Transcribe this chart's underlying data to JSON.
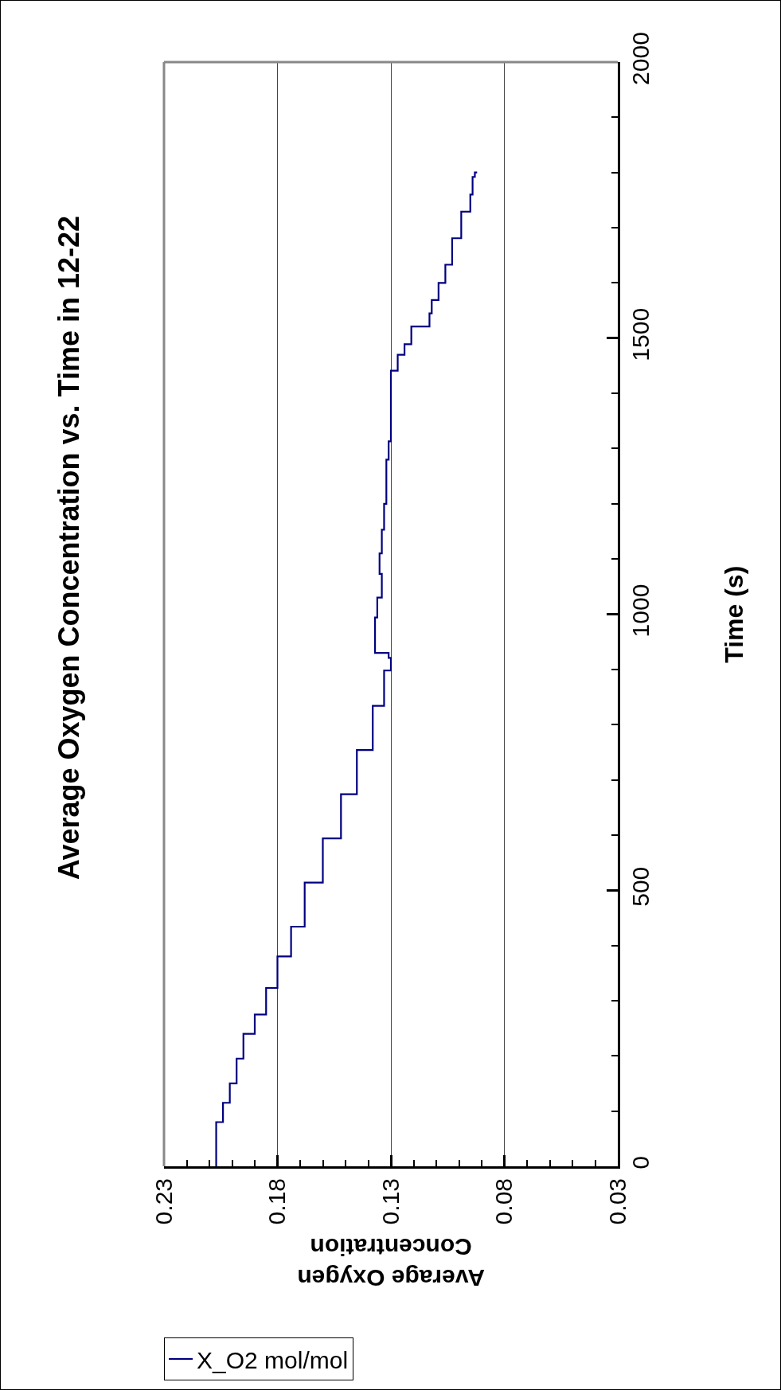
{
  "chart_data": {
    "type": "step",
    "title": "Average Oxygen Concentration vs. Time in 12-22",
    "xlabel": "Average Oxygen Concentration",
    "ylabel": "Time (s)",
    "series": [
      {
        "name": "X_O2 mol/mol",
        "color": "#000080",
        "x": [
          0.207,
          0.207,
          0.204,
          0.201,
          0.198,
          0.195,
          0.19,
          0.185,
          0.18,
          0.174,
          0.168,
          0.16,
          0.152,
          0.145,
          0.138,
          0.133,
          0.13,
          0.131,
          0.137,
          0.137,
          0.136,
          0.134,
          0.135,
          0.134,
          0.133,
          0.132,
          0.132,
          0.131,
          0.13,
          0.13,
          0.127,
          0.124,
          0.121,
          0.113,
          0.112,
          0.109,
          0.106,
          0.103,
          0.099,
          0.095,
          0.094,
          0.093,
          0.092
        ],
        "values": [
          0,
          60,
          80,
          115,
          150,
          195,
          240,
          275,
          323,
          380,
          434,
          514,
          594,
          674,
          754,
          834,
          898,
          921,
          930,
          960,
          994,
          1030,
          1073,
          1110,
          1153,
          1200,
          1233,
          1280,
          1313,
          1377,
          1441,
          1470,
          1489,
          1521,
          1545,
          1569,
          1600,
          1633,
          1681,
          1729,
          1760,
          1792,
          1800
        ]
      }
    ],
    "ylim": [
      0,
      2000
    ],
    "xlim": [
      0.23,
      0.03
    ],
    "yticks": [
      0,
      {
        "value": 100,
        "label": null
      },
      {
        "value": 200,
        "label": null
      },
      {
        "value": 300,
        "label": null
      },
      {
        "value": 400,
        "label": null
      },
      500,
      {
        "value": 600,
        "label": null
      },
      {
        "value": 700,
        "label": null
      },
      {
        "value": 800,
        "label": null
      },
      {
        "value": 900,
        "label": null
      },
      1000,
      {
        "value": 1100,
        "label": null
      },
      {
        "value": 1200,
        "label": null
      },
      {
        "value": 1300,
        "label": null
      },
      {
        "value": 1400,
        "label": null
      },
      1500,
      {
        "value": 1600,
        "label": null
      },
      {
        "value": 1700,
        "label": null
      },
      {
        "value": 1800,
        "label": null
      },
      {
        "value": 1900,
        "label": null
      },
      2000
    ],
    "xticks": [
      {
        "value": 0.23,
        "label": "0.23"
      },
      {
        "value": 0.22,
        "label": null
      },
      {
        "value": 0.21,
        "label": null
      },
      {
        "value": 0.2,
        "label": null
      },
      {
        "value": 0.19,
        "label": null
      },
      {
        "value": 0.18,
        "label": "0.18"
      },
      {
        "value": 0.17,
        "label": null
      },
      {
        "value": 0.16,
        "label": null
      },
      {
        "value": 0.15,
        "label": null
      },
      {
        "value": 0.14,
        "label": null
      },
      {
        "value": 0.13,
        "label": "0.13"
      },
      {
        "value": 0.12,
        "label": null
      },
      {
        "value": 0.11,
        "label": null
      },
      {
        "value": 0.1,
        "label": null
      },
      {
        "value": 0.09,
        "label": null
      },
      {
        "value": 0.08,
        "label": "0.08"
      },
      {
        "value": 0.07,
        "label": null
      },
      {
        "value": 0.06,
        "label": null
      },
      {
        "value": 0.05,
        "label": null
      },
      {
        "value": 0.04,
        "label": null
      },
      {
        "value": 0.03,
        "label": "0.03"
      }
    ],
    "grid": "x",
    "legend": "bottom left"
  }
}
